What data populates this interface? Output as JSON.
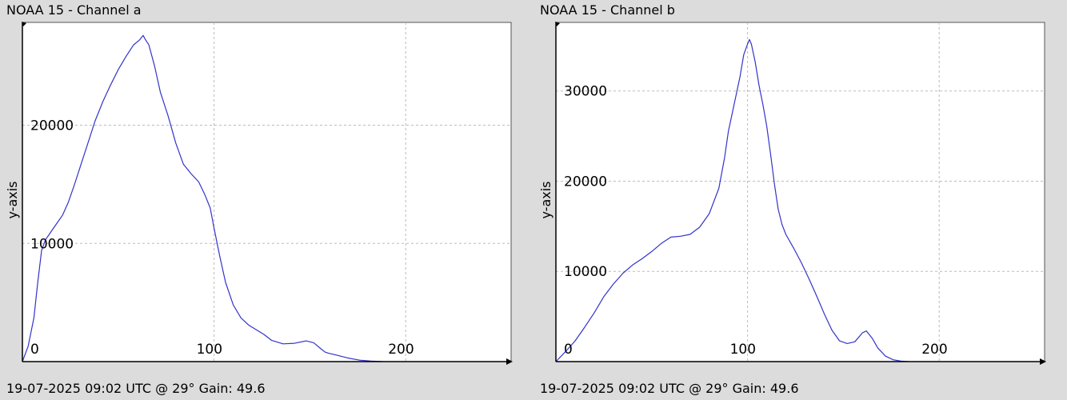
{
  "charts": [
    {
      "title": "NOAA 15 - Channel a",
      "footer": "19-07-2025 09:02 UTC @ 29° Gain: 49.6"
    },
    {
      "title": "NOAA 15 - Channel b",
      "footer": "19-07-2025 09:02 UTC @ 29° Gain: 49.6"
    }
  ],
  "colors": {
    "background": "#dcdcdc",
    "plot_background": "#ffffff",
    "line": "#3333cc",
    "grid": "#bbbbbb",
    "axis": "#000000"
  },
  "chart_data": [
    {
      "type": "line",
      "title": "NOAA 15 - Channel a",
      "xlabel": "",
      "ylabel": "y-axis",
      "xlim": [
        0,
        255
      ],
      "ylim": [
        0,
        28700
      ],
      "x_ticks": [
        0,
        100,
        200
      ],
      "x_tick_labels": [
        "0",
        "100",
        "200"
      ],
      "y_ticks": [
        10000,
        20000
      ],
      "y_tick_labels": [
        "10000",
        "20000"
      ],
      "grid": true,
      "series": [
        {
          "x": [
            0,
            3,
            6,
            8,
            10,
            12,
            15,
            18,
            21,
            24,
            27,
            30,
            34,
            38,
            42,
            46,
            50,
            54,
            58,
            61,
            63,
            64,
            66,
            69,
            72,
            76,
            80,
            84,
            88,
            92,
            95,
            98,
            100,
            103,
            106,
            110,
            114,
            118,
            122,
            126,
            130,
            136,
            142,
            148,
            152,
            156,
            158,
            160,
            164,
            170,
            176,
            182,
            186,
            188
          ],
          "y": [
            0,
            1300,
            3700,
            6700,
            9400,
            10300,
            11000,
            11700,
            12400,
            13500,
            14900,
            16400,
            18400,
            20400,
            22000,
            23400,
            24700,
            25800,
            26800,
            27200,
            27600,
            27300,
            26800,
            25000,
            22800,
            20800,
            18500,
            16700,
            15900,
            15200,
            14200,
            13000,
            11300,
            8900,
            6700,
            4800,
            3700,
            3100,
            2700,
            2300,
            1800,
            1500,
            1550,
            1750,
            1600,
            1050,
            800,
            700,
            550,
            300,
            120,
            40,
            20,
            0
          ]
        }
      ]
    },
    {
      "type": "line",
      "title": "NOAA 15 - Channel b",
      "xlabel": "",
      "ylabel": "y-axis",
      "xlim": [
        0,
        255
      ],
      "ylim": [
        0,
        37600
      ],
      "x_ticks": [
        0,
        100,
        200
      ],
      "x_tick_labels": [
        "0",
        "100",
        "200"
      ],
      "y_ticks": [
        10000,
        20000,
        30000
      ],
      "y_tick_labels": [
        "10000",
        "20000",
        "30000"
      ],
      "grid": true,
      "series": [
        {
          "x": [
            0,
            5,
            10,
            15,
            20,
            25,
            30,
            35,
            40,
            45,
            50,
            55,
            60,
            65,
            70,
            75,
            80,
            85,
            88,
            90,
            93,
            96,
            98,
            100,
            101,
            102,
            104,
            106,
            108,
            110,
            112,
            114,
            116,
            118,
            120,
            124,
            128,
            132,
            136,
            140,
            144,
            148,
            152,
            156,
            160,
            162,
            165,
            168,
            172,
            176,
            180,
            184
          ],
          "y": [
            0,
            1100,
            2300,
            3800,
            5400,
            7200,
            8600,
            9800,
            10700,
            11400,
            12200,
            13100,
            13800,
            13900,
            14100,
            14900,
            16400,
            19200,
            22600,
            25500,
            28500,
            31500,
            34000,
            35200,
            35700,
            35200,
            33200,
            30600,
            28500,
            26100,
            23000,
            19700,
            16900,
            15200,
            14100,
            12600,
            11000,
            9200,
            7300,
            5300,
            3500,
            2300,
            2000,
            2200,
            3200,
            3400,
            2600,
            1500,
            600,
            200,
            50,
            0
          ]
        }
      ]
    }
  ]
}
